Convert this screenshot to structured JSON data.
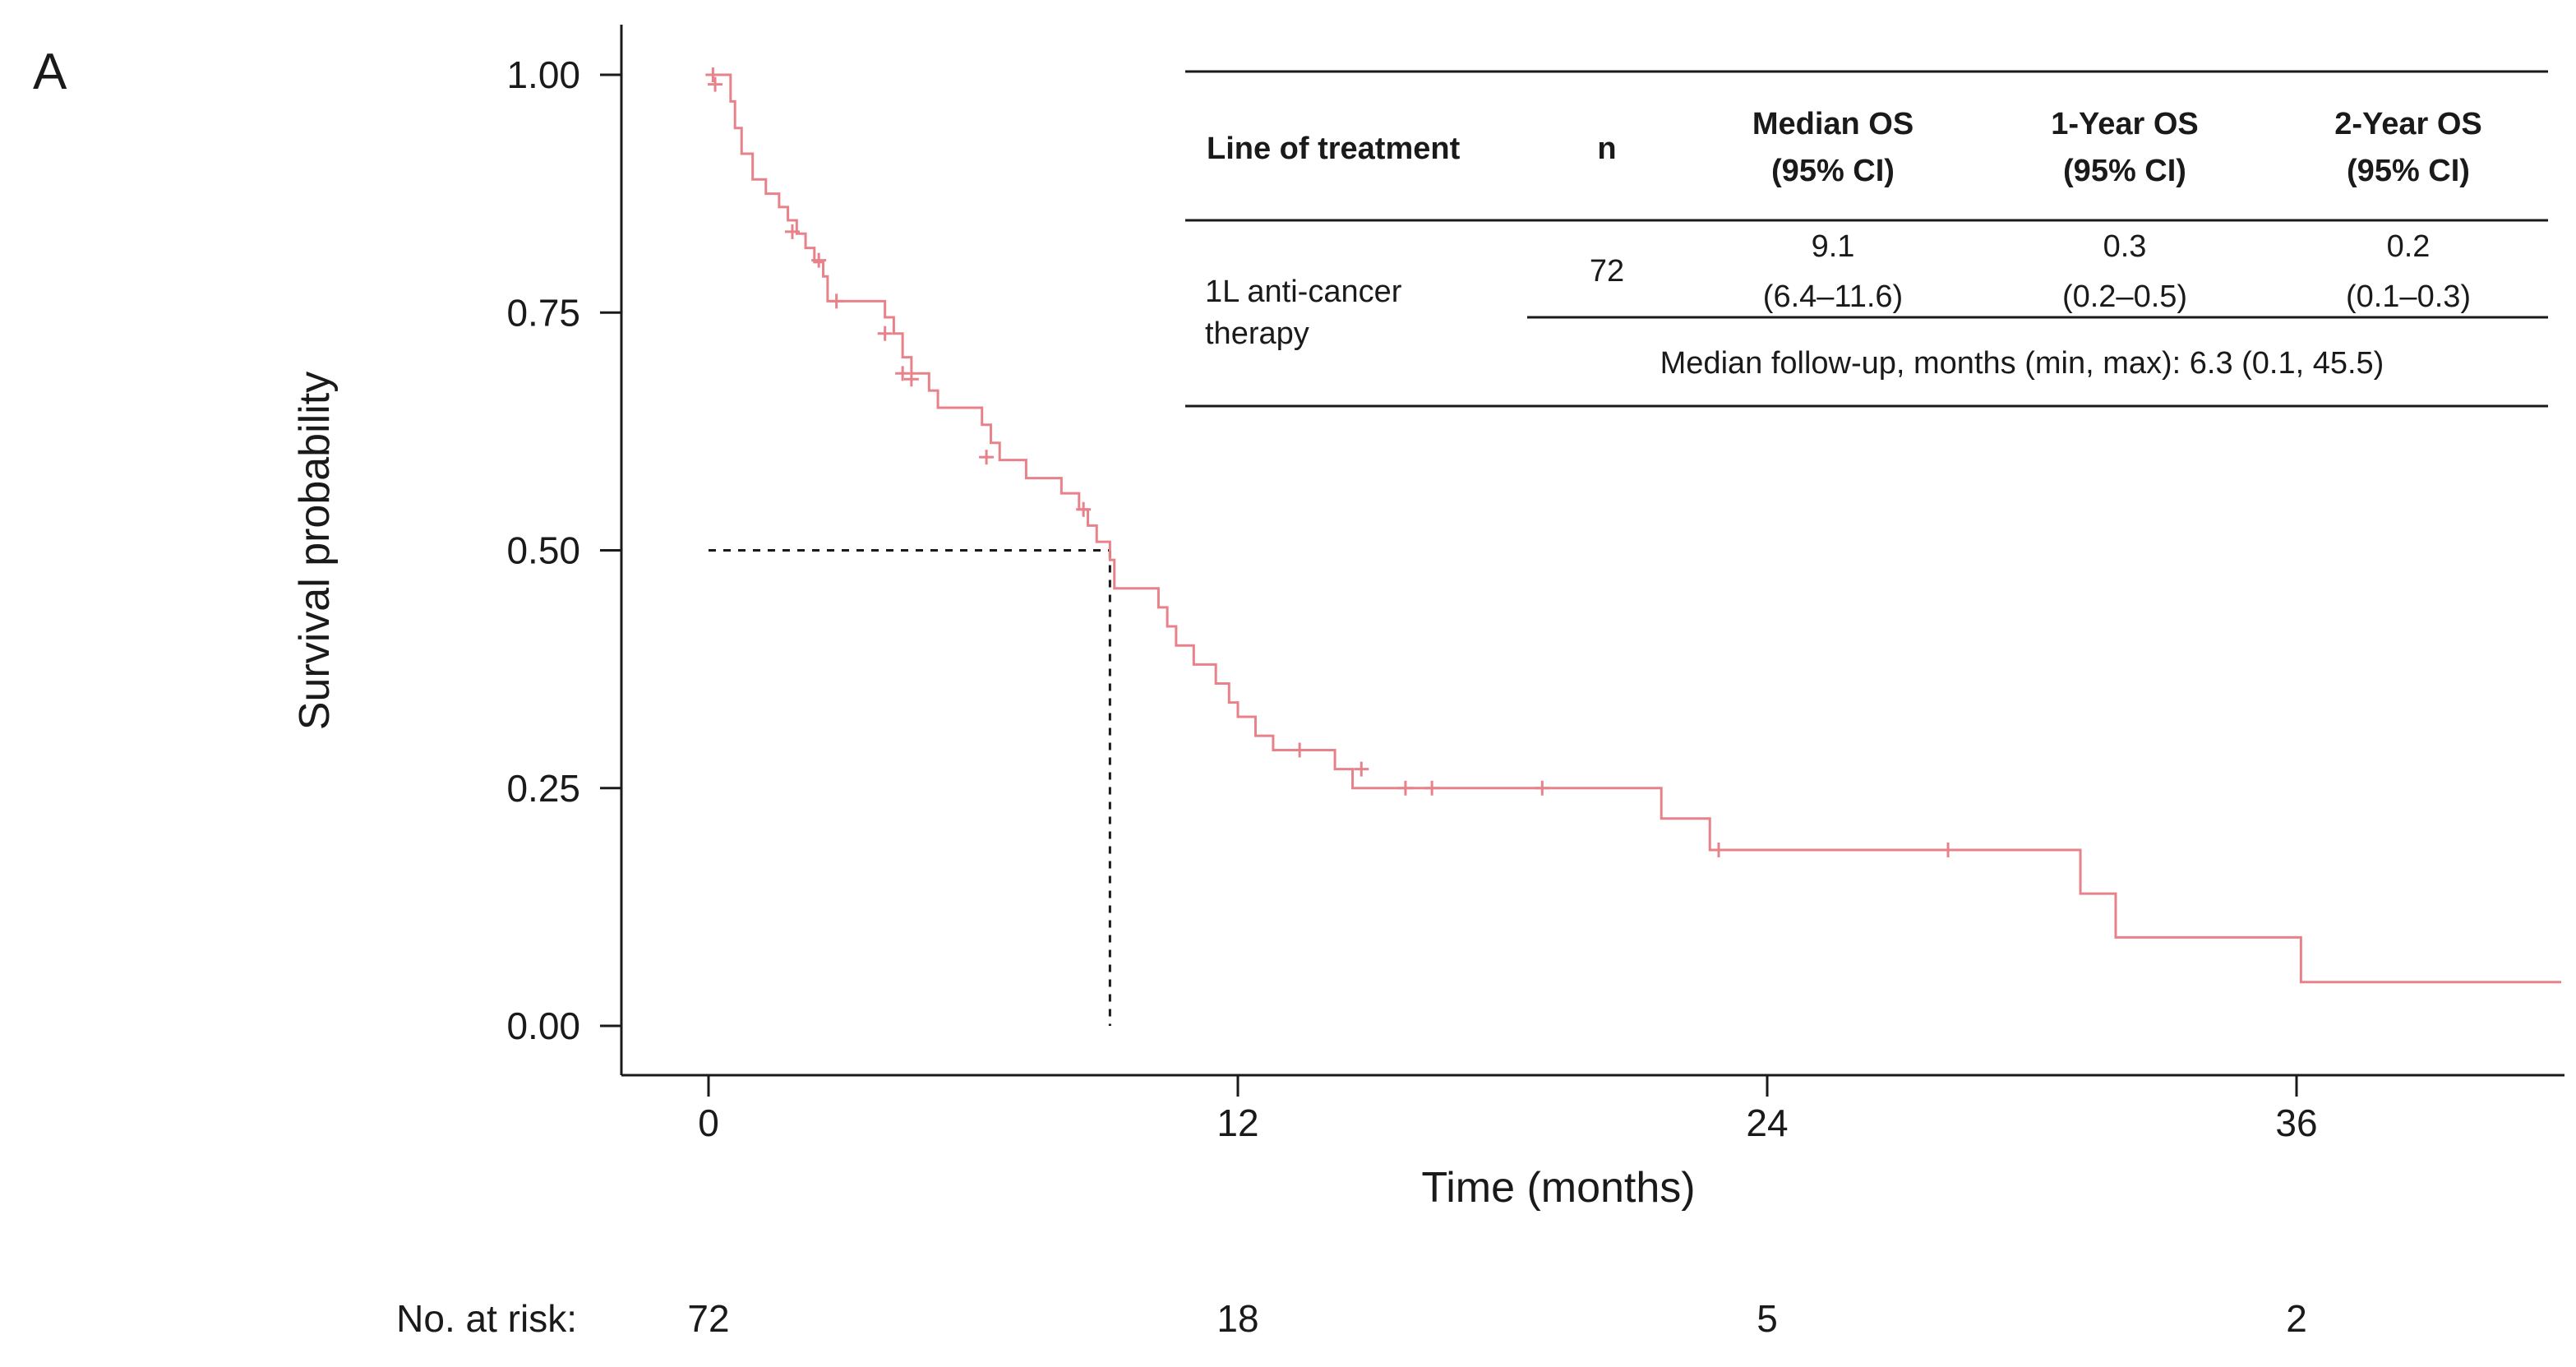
{
  "chart_data": {
    "type": "line",
    "subtype": "kaplan-meier",
    "panel_label": "A",
    "xlabel": "Time (months)",
    "ylabel": "Survival probability",
    "xlim": [
      -2,
      42
    ],
    "ylim": [
      -0.05,
      1.05
    ],
    "x_ticks": [
      0,
      12,
      24,
      36
    ],
    "x_tick_labels": [
      "0",
      "12",
      "24",
      "36"
    ],
    "y_ticks": [
      0.0,
      0.25,
      0.5,
      0.75,
      1.0
    ],
    "y_tick_labels": [
      "0.00",
      "0.25",
      "0.50",
      "0.75",
      "1.00"
    ],
    "series": [
      {
        "name": "1L anti-cancer therapy",
        "color": "#e8828a",
        "steps": [
          [
            0,
            1.0
          ],
          [
            0.5,
            0.972
          ],
          [
            0.6,
            0.944
          ],
          [
            0.75,
            0.917
          ],
          [
            1.0,
            0.89
          ],
          [
            1.3,
            0.875
          ],
          [
            1.6,
            0.861
          ],
          [
            1.8,
            0.847
          ],
          [
            2.0,
            0.833
          ],
          [
            2.2,
            0.818
          ],
          [
            2.4,
            0.803
          ],
          [
            2.6,
            0.788
          ],
          [
            2.7,
            0.762
          ],
          [
            4.0,
            0.745
          ],
          [
            4.2,
            0.728
          ],
          [
            4.4,
            0.703
          ],
          [
            4.6,
            0.686
          ],
          [
            5.0,
            0.668
          ],
          [
            5.2,
            0.65
          ],
          [
            6.2,
            0.632
          ],
          [
            6.4,
            0.613
          ],
          [
            6.6,
            0.595
          ],
          [
            7.2,
            0.576
          ],
          [
            8.0,
            0.56
          ],
          [
            8.4,
            0.543
          ],
          [
            8.6,
            0.526
          ],
          [
            8.8,
            0.509
          ],
          [
            9.1,
            0.49
          ],
          [
            9.2,
            0.46
          ],
          [
            10.2,
            0.44
          ],
          [
            10.4,
            0.42
          ],
          [
            10.6,
            0.4
          ],
          [
            11.0,
            0.38
          ],
          [
            11.5,
            0.36
          ],
          [
            11.8,
            0.34
          ],
          [
            12.0,
            0.325
          ],
          [
            12.4,
            0.305
          ],
          [
            12.8,
            0.29
          ],
          [
            14.2,
            0.27
          ],
          [
            14.6,
            0.25
          ],
          [
            21.6,
            0.218
          ],
          [
            22.7,
            0.185
          ],
          [
            31.1,
            0.139
          ],
          [
            31.9,
            0.093
          ],
          [
            36.1,
            0.046
          ]
        ],
        "end_x": 42,
        "censored": [
          [
            0.1,
            1.0
          ],
          [
            0.15,
            0.99
          ],
          [
            1.9,
            0.835
          ],
          [
            2.5,
            0.805
          ],
          [
            2.9,
            0.762
          ],
          [
            4.0,
            0.728
          ],
          [
            4.4,
            0.686
          ],
          [
            4.6,
            0.68
          ],
          [
            6.3,
            0.598
          ],
          [
            8.5,
            0.543
          ],
          [
            13.4,
            0.29
          ],
          [
            14.8,
            0.27
          ],
          [
            15.8,
            0.25
          ],
          [
            16.4,
            0.25
          ],
          [
            18.9,
            0.25
          ],
          [
            22.9,
            0.185
          ],
          [
            28.1,
            0.185
          ]
        ]
      }
    ],
    "median_reference": {
      "x": 9.1,
      "y": 0.5
    },
    "table": {
      "headers": [
        "Line of treatment",
        "n",
        "Median OS\n(95% CI)",
        "1-Year OS\n(95% CI)",
        "2-Year OS\n(95% CI)"
      ],
      "row": {
        "label_line1": "1L anti-cancer",
        "label_line2": "therapy",
        "n": "72",
        "median_os": "9.1",
        "median_ci": "(6.4–11.6)",
        "one_year": "0.3",
        "one_year_ci": "(0.2–0.5)",
        "two_year": "0.2",
        "two_year_ci": "(0.1–0.3)"
      },
      "follow_up": "Median follow-up, months (min, max): 6.3 (0.1, 45.5)"
    },
    "risk_table": {
      "label": "No. at risk:",
      "times": [
        0,
        12,
        24,
        36
      ],
      "counts": [
        "72",
        "18",
        "5",
        "2"
      ]
    }
  }
}
